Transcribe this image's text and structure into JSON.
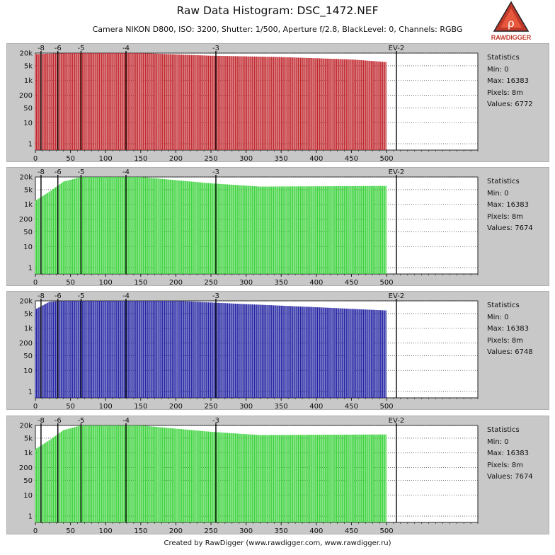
{
  "header": {
    "title": "Raw Data Histogram: DSC_1472.NEF",
    "subtitle": "Camera NIKON D800, ISO: 3200, Shutter: 1/500, Aperture f/2.8, BlackLevel: 0, Channels: RGBG"
  },
  "logo": {
    "text": "RAWDIGGER",
    "icon": "rawdigger-logo-icon",
    "color": "#c0392b"
  },
  "footer": "Created by RawDigger (www.rawdigger.com, www.rawdigger.ru)",
  "chart_data": [
    {
      "type": "bar",
      "channel": "R",
      "color": "#c0272d",
      "xlim": [
        0,
        630
      ],
      "xticks": [
        0,
        50,
        100,
        150,
        200,
        250,
        300,
        350,
        400,
        450,
        500
      ],
      "yscale": "log",
      "yticks": [
        1,
        10,
        50,
        200,
        1000,
        5000,
        20000
      ],
      "ytick_labels": [
        "1",
        "10",
        "50",
        "200",
        "1k",
        "5k",
        "20k"
      ],
      "ylim": [
        0.5,
        20000
      ],
      "ev_marks": [
        {
          "x": 8,
          "label": "-8"
        },
        {
          "x": 32,
          "label": "-6"
        },
        {
          "x": 65,
          "label": "-5"
        },
        {
          "x": 129,
          "label": "-4"
        },
        {
          "x": 257,
          "label": "-3"
        },
        {
          "x": 514,
          "label": "EV-2"
        }
      ],
      "profile": [
        [
          0,
          18000
        ],
        [
          50,
          20000
        ],
        [
          150,
          20000
        ],
        [
          250,
          15000
        ],
        [
          350,
          13000
        ],
        [
          450,
          10000
        ],
        [
          500,
          7500
        ]
      ],
      "data_range": [
        0,
        500
      ],
      "stats": {
        "heading": "Statistics",
        "min": "Min: 0",
        "max": "Max: 16383",
        "pixels": "Pixels: 8m",
        "values": "Values: 6772"
      }
    },
    {
      "type": "bar",
      "channel": "G",
      "color": "#3cd23c",
      "xlim": [
        0,
        630
      ],
      "xticks": [
        0,
        50,
        100,
        150,
        200,
        250,
        300,
        350,
        400,
        450,
        500
      ],
      "yscale": "log",
      "yticks": [
        1,
        10,
        50,
        200,
        1000,
        5000,
        20000
      ],
      "ytick_labels": [
        "1",
        "10",
        "50",
        "200",
        "1k",
        "5k",
        "20k"
      ],
      "ylim": [
        0.5,
        20000
      ],
      "ev_marks": [
        {
          "x": 8,
          "label": "-8"
        },
        {
          "x": 32,
          "label": "-6"
        },
        {
          "x": 65,
          "label": "-5"
        },
        {
          "x": 129,
          "label": "-4"
        },
        {
          "x": 257,
          "label": "-3"
        },
        {
          "x": 514,
          "label": "EV-2"
        }
      ],
      "profile": [
        [
          0,
          1500
        ],
        [
          20,
          4000
        ],
        [
          40,
          12000
        ],
        [
          65,
          20000
        ],
        [
          150,
          20000
        ],
        [
          250,
          10000
        ],
        [
          320,
          7000
        ],
        [
          500,
          7500
        ]
      ],
      "data_range": [
        0,
        500
      ],
      "stats": {
        "heading": "Statistics",
        "min": "Min: 0",
        "max": "Max: 16383",
        "pixels": "Pixels: 8m",
        "values": "Values: 7674"
      }
    },
    {
      "type": "bar",
      "channel": "B",
      "color": "#2323a3",
      "xlim": [
        0,
        630
      ],
      "xticks": [
        0,
        50,
        100,
        150,
        200,
        250,
        300,
        350,
        400,
        450,
        500
      ],
      "yscale": "log",
      "yticks": [
        1,
        10,
        50,
        200,
        1000,
        5000,
        20000
      ],
      "ytick_labels": [
        "1",
        "10",
        "50",
        "200",
        "1k",
        "5k",
        "20k"
      ],
      "ylim": [
        0.5,
        20000
      ],
      "ev_marks": [
        {
          "x": 8,
          "label": "-8"
        },
        {
          "x": 32,
          "label": "-6"
        },
        {
          "x": 65,
          "label": "-5"
        },
        {
          "x": 129,
          "label": "-4"
        },
        {
          "x": 257,
          "label": "-3"
        },
        {
          "x": 514,
          "label": "EV-2"
        }
      ],
      "profile": [
        [
          0,
          8000
        ],
        [
          20,
          18000
        ],
        [
          40,
          20000
        ],
        [
          200,
          20000
        ],
        [
          300,
          14000
        ],
        [
          400,
          10000
        ],
        [
          500,
          7000
        ]
      ],
      "data_range": [
        0,
        500
      ],
      "stats": {
        "heading": "Statistics",
        "min": "Min: 0",
        "max": "Max: 16383",
        "pixels": "Pixels: 8m",
        "values": "Values: 6748"
      }
    },
    {
      "type": "bar",
      "channel": "G",
      "color": "#3cd23c",
      "xlim": [
        0,
        630
      ],
      "xticks": [
        0,
        50,
        100,
        150,
        200,
        250,
        300,
        350,
        400,
        450,
        500
      ],
      "yscale": "log",
      "yticks": [
        1,
        10,
        50,
        200,
        1000,
        5000,
        20000
      ],
      "ytick_labels": [
        "1",
        "10",
        "50",
        "200",
        "1k",
        "5k",
        "20k"
      ],
      "ylim": [
        0.5,
        20000
      ],
      "ev_marks": [
        {
          "x": 8,
          "label": "-8"
        },
        {
          "x": 32,
          "label": "-6"
        },
        {
          "x": 65,
          "label": "-5"
        },
        {
          "x": 129,
          "label": "-4"
        },
        {
          "x": 257,
          "label": "-3"
        },
        {
          "x": 514,
          "label": "EV-2"
        }
      ],
      "profile": [
        [
          0,
          1500
        ],
        [
          20,
          4000
        ],
        [
          40,
          12000
        ],
        [
          65,
          20000
        ],
        [
          150,
          20000
        ],
        [
          250,
          10000
        ],
        [
          320,
          7000
        ],
        [
          500,
          7500
        ]
      ],
      "data_range": [
        0,
        500
      ],
      "stats": {
        "heading": "Statistics",
        "min": "Min: 0",
        "max": "Max: 16383",
        "pixels": "Pixels: 8m",
        "values": "Values: 7674"
      }
    }
  ]
}
